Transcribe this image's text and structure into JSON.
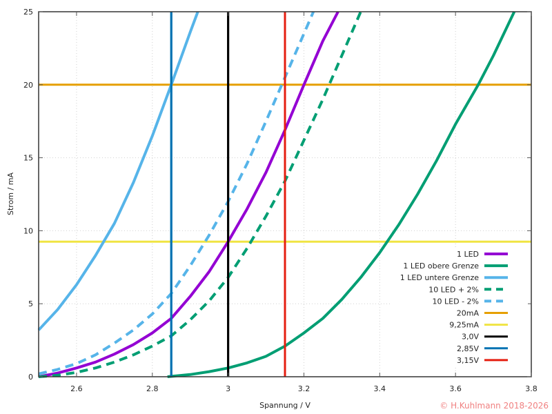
{
  "chart_data": {
    "type": "line",
    "title": "",
    "xlabel": "Spannung / V",
    "ylabel": "Strom / mA",
    "xlim": [
      2.5,
      3.8
    ],
    "ylim": [
      0,
      25
    ],
    "xticks": [
      2.6,
      2.8,
      3,
      3.2,
      3.4,
      3.6,
      3.8
    ],
    "xtick_labels": [
      "2.6",
      "2.8",
      "3",
      "3.2",
      "3.4",
      "3.6",
      "3.8"
    ],
    "yticks": [
      0,
      5,
      10,
      15,
      20,
      25
    ],
    "ytick_labels": [
      "0",
      "5",
      "10",
      "15",
      "20",
      "25"
    ],
    "grid": true,
    "legend_position": "lower right",
    "copyright": "© H.Kuhlmann 2018-2026",
    "series": [
      {
        "name": "1 LED",
        "color": "#9400d3",
        "dash": false,
        "x": [
          2.5,
          2.55,
          2.6,
          2.65,
          2.7,
          2.75,
          2.8,
          2.85,
          2.9,
          2.95,
          3.0,
          3.05,
          3.1,
          3.15,
          3.2,
          3.25,
          3.29
        ],
        "y": [
          0.0,
          0.25,
          0.6,
          1.0,
          1.55,
          2.2,
          3.0,
          4.0,
          5.5,
          7.2,
          9.25,
          11.5,
          14.0,
          16.9,
          20.0,
          23.0,
          25.0
        ]
      },
      {
        "name": "1 LED obere Grenze",
        "color": "#009e73",
        "dash": false,
        "x": [
          2.84,
          2.9,
          2.95,
          3.0,
          3.05,
          3.1,
          3.15,
          3.2,
          3.25,
          3.3,
          3.35,
          3.4,
          3.45,
          3.5,
          3.55,
          3.6,
          3.66,
          3.7,
          3.755
        ],
        "y": [
          0.0,
          0.15,
          0.35,
          0.6,
          0.95,
          1.4,
          2.1,
          3.0,
          4.0,
          5.3,
          6.8,
          8.5,
          10.4,
          12.5,
          14.8,
          17.3,
          20.0,
          22.0,
          25.0
        ]
      },
      {
        "name": "1 LED untere Grenze",
        "color": "#56b4e9",
        "dash": false,
        "x": [
          2.5,
          2.55,
          2.6,
          2.65,
          2.7,
          2.75,
          2.8,
          2.85,
          2.9,
          2.92
        ],
        "y": [
          3.2,
          4.6,
          6.3,
          8.3,
          10.5,
          13.3,
          16.5,
          20.0,
          23.6,
          25.0
        ]
      },
      {
        "name": "10 LED + 2%",
        "color": "#009e73",
        "dash": true,
        "x": [
          2.5,
          2.55,
          2.6,
          2.65,
          2.7,
          2.75,
          2.8,
          2.85,
          2.9,
          2.95,
          3.0,
          3.05,
          3.1,
          3.15,
          3.2,
          3.25,
          3.3,
          3.35
        ],
        "y": [
          0.0,
          0.1,
          0.3,
          0.6,
          1.0,
          1.5,
          2.1,
          2.8,
          3.9,
          5.2,
          6.8,
          8.8,
          11.0,
          13.4,
          16.2,
          19.0,
          22.0,
          25.0
        ]
      },
      {
        "name": "10 LED - 2%",
        "color": "#56b4e9",
        "dash": true,
        "x": [
          2.5,
          2.55,
          2.6,
          2.65,
          2.7,
          2.75,
          2.8,
          2.85,
          2.9,
          2.95,
          3.0,
          3.05,
          3.1,
          3.15,
          3.2,
          3.225
        ],
        "y": [
          0.2,
          0.5,
          0.9,
          1.5,
          2.3,
          3.2,
          4.3,
          5.7,
          7.6,
          9.7,
          12.0,
          14.6,
          17.5,
          20.5,
          23.5,
          25.0
        ]
      },
      {
        "name": "20mA",
        "color": "#e69f00",
        "dash": false,
        "kind": "hline",
        "value": 20
      },
      {
        "name": "9,25mA",
        "color": "#f0e442",
        "dash": false,
        "kind": "hline",
        "value": 9.25
      },
      {
        "name": "3,0V",
        "color": "#000000",
        "dash": false,
        "kind": "vline",
        "value": 3.0
      },
      {
        "name": "2,85V",
        "color": "#0072b2",
        "dash": false,
        "kind": "vline",
        "value": 2.85
      },
      {
        "name": "3,15V",
        "color": "#e51e10",
        "dash": false,
        "kind": "vline",
        "value": 3.15
      }
    ]
  }
}
